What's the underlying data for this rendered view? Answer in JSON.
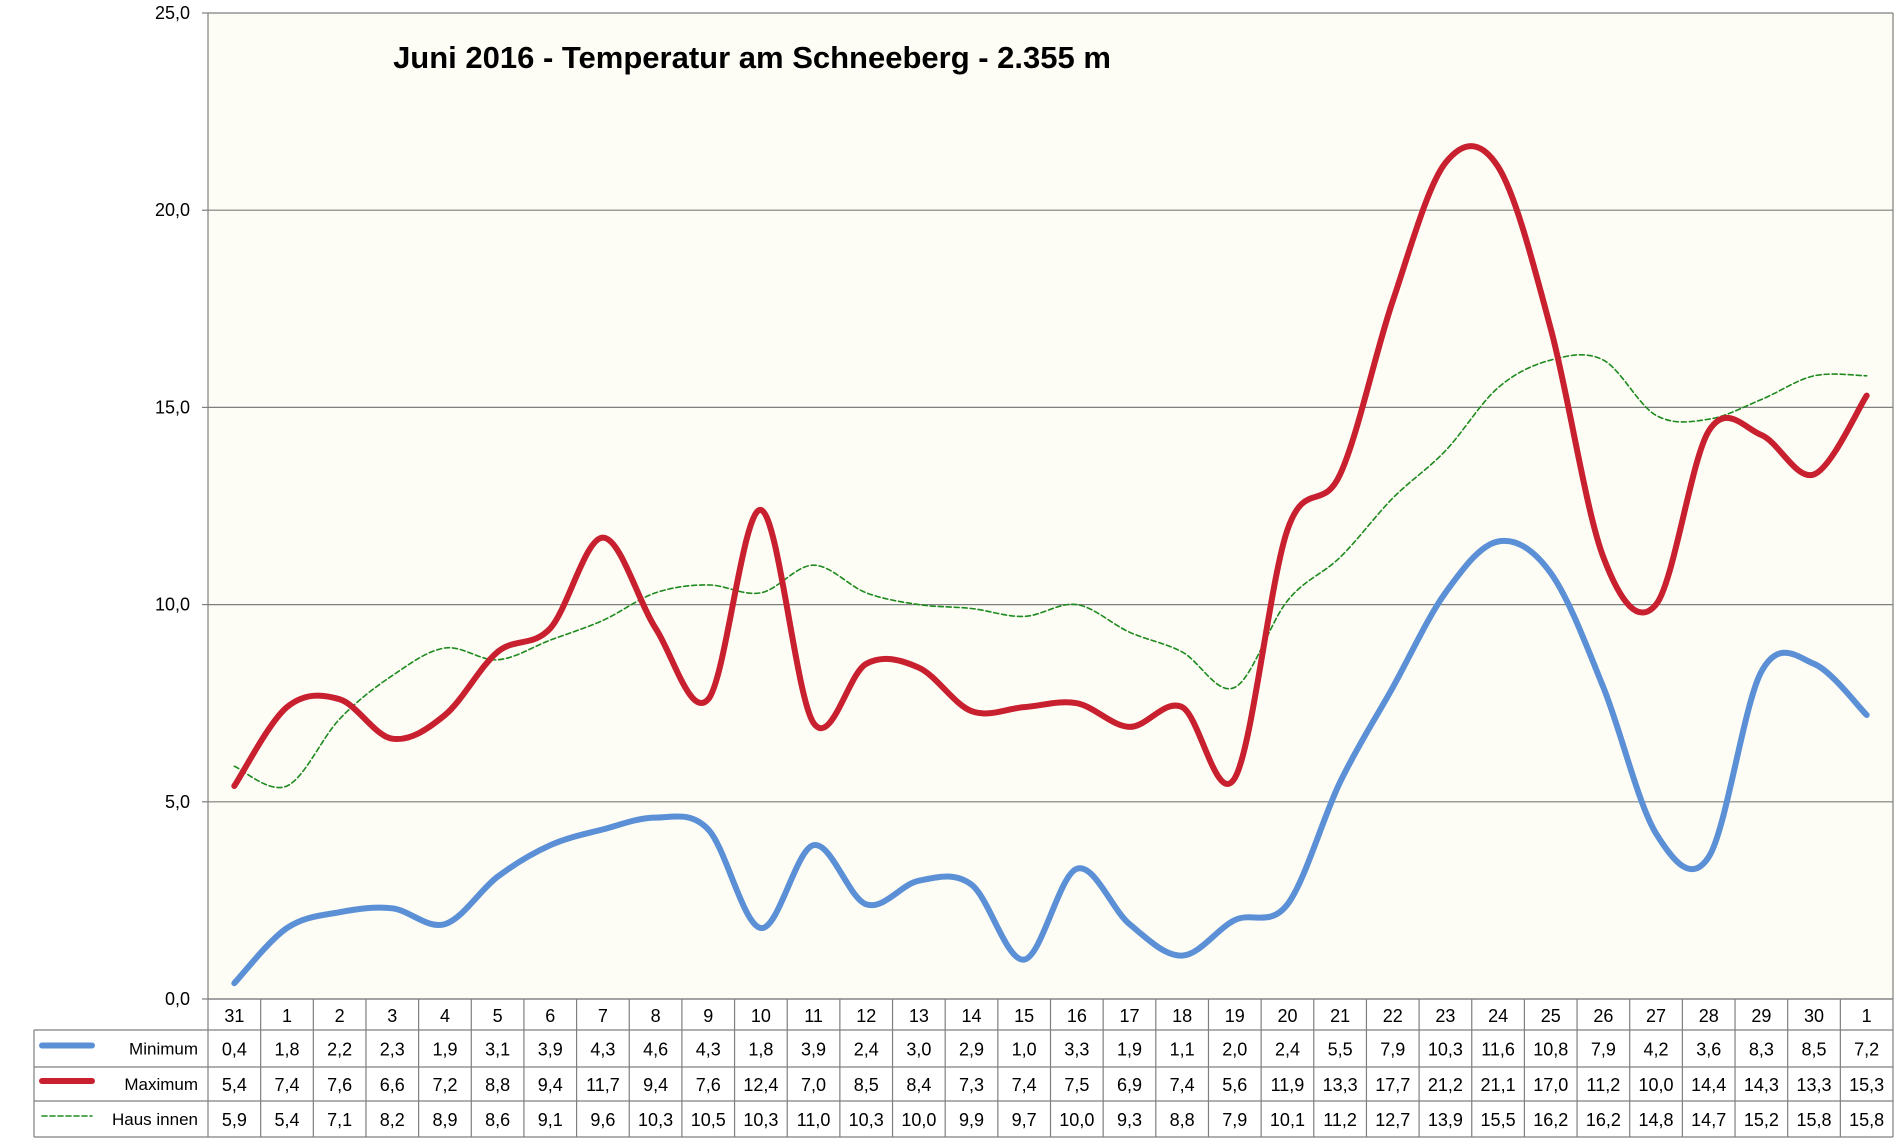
{
  "chart_data": {
    "type": "line",
    "title": "Juni 2016 - Temperatur am Schneeberg - 2.355 m",
    "categories": [
      "31",
      "1",
      "2",
      "3",
      "4",
      "5",
      "6",
      "7",
      "8",
      "9",
      "10",
      "11",
      "12",
      "13",
      "14",
      "15",
      "16",
      "17",
      "18",
      "19",
      "20",
      "21",
      "22",
      "23",
      "24",
      "25",
      "26",
      "27",
      "28",
      "29",
      "30",
      "1"
    ],
    "ylim": [
      0,
      25
    ],
    "yticks": [
      "0,0",
      "5,0",
      "10,0",
      "15,0",
      "20,0",
      "25,0"
    ],
    "grid": true,
    "legend_placement": "data-table-left",
    "series": [
      {
        "name": "Minimum",
        "color": "#5b8fd6",
        "style": "solid-thick",
        "values": [
          0.4,
          1.8,
          2.2,
          2.3,
          1.9,
          3.1,
          3.9,
          4.3,
          4.6,
          4.3,
          1.8,
          3.9,
          2.4,
          3.0,
          2.9,
          1.0,
          3.3,
          1.9,
          1.1,
          2.0,
          2.4,
          5.5,
          7.9,
          10.3,
          11.6,
          10.8,
          7.9,
          4.2,
          3.6,
          8.3,
          8.5,
          7.2
        ],
        "labels": [
          "0,4",
          "1,8",
          "2,2",
          "2,3",
          "1,9",
          "3,1",
          "3,9",
          "4,3",
          "4,6",
          "4,3",
          "1,8",
          "3,9",
          "2,4",
          "3,0",
          "2,9",
          "1,0",
          "3,3",
          "1,9",
          "1,1",
          "2,0",
          "2,4",
          "5,5",
          "7,9",
          "10,3",
          "11,6",
          "10,8",
          "7,9",
          "4,2",
          "3,6",
          "8,3",
          "8,5",
          "7,2"
        ]
      },
      {
        "name": "Maximum",
        "color": "#c8202f",
        "style": "solid-thick",
        "values": [
          5.4,
          7.4,
          7.6,
          6.6,
          7.2,
          8.8,
          9.4,
          11.7,
          9.4,
          7.6,
          12.4,
          7.0,
          8.5,
          8.4,
          7.3,
          7.4,
          7.5,
          6.9,
          7.4,
          5.6,
          11.9,
          13.3,
          17.7,
          21.2,
          21.1,
          17.0,
          11.2,
          10.0,
          14.4,
          14.3,
          13.3,
          15.3
        ],
        "labels": [
          "5,4",
          "7,4",
          "7,6",
          "6,6",
          "7,2",
          "8,8",
          "9,4",
          "11,7",
          "9,4",
          "7,6",
          "12,4",
          "7,0",
          "8,5",
          "8,4",
          "7,3",
          "7,4",
          "7,5",
          "6,9",
          "7,4",
          "5,6",
          "11,9",
          "13,3",
          "17,7",
          "21,2",
          "21,1",
          "17,0",
          "11,2",
          "10,0",
          "14,4",
          "14,3",
          "13,3",
          "15,3"
        ]
      },
      {
        "name": "Haus innen",
        "color": "#1e8a1e",
        "style": "dashed-thin",
        "values": [
          5.9,
          5.4,
          7.1,
          8.2,
          8.9,
          8.6,
          9.1,
          9.6,
          10.3,
          10.5,
          10.3,
          11.0,
          10.3,
          10.0,
          9.9,
          9.7,
          10.0,
          9.3,
          8.8,
          7.9,
          10.1,
          11.2,
          12.7,
          13.9,
          15.5,
          16.2,
          16.2,
          14.8,
          14.7,
          15.2,
          15.8,
          15.8
        ],
        "labels": [
          "5,9",
          "5,4",
          "7,1",
          "8,2",
          "8,9",
          "8,6",
          "9,1",
          "9,6",
          "10,3",
          "10,5",
          "10,3",
          "11,0",
          "10,3",
          "10,0",
          "9,9",
          "9,7",
          "10,0",
          "9,3",
          "8,8",
          "7,9",
          "10,1",
          "11,2",
          "12,7",
          "13,9",
          "15,5",
          "16,2",
          "16,2",
          "14,8",
          "14,7",
          "15,2",
          "15,8",
          "15,8"
        ]
      }
    ]
  }
}
